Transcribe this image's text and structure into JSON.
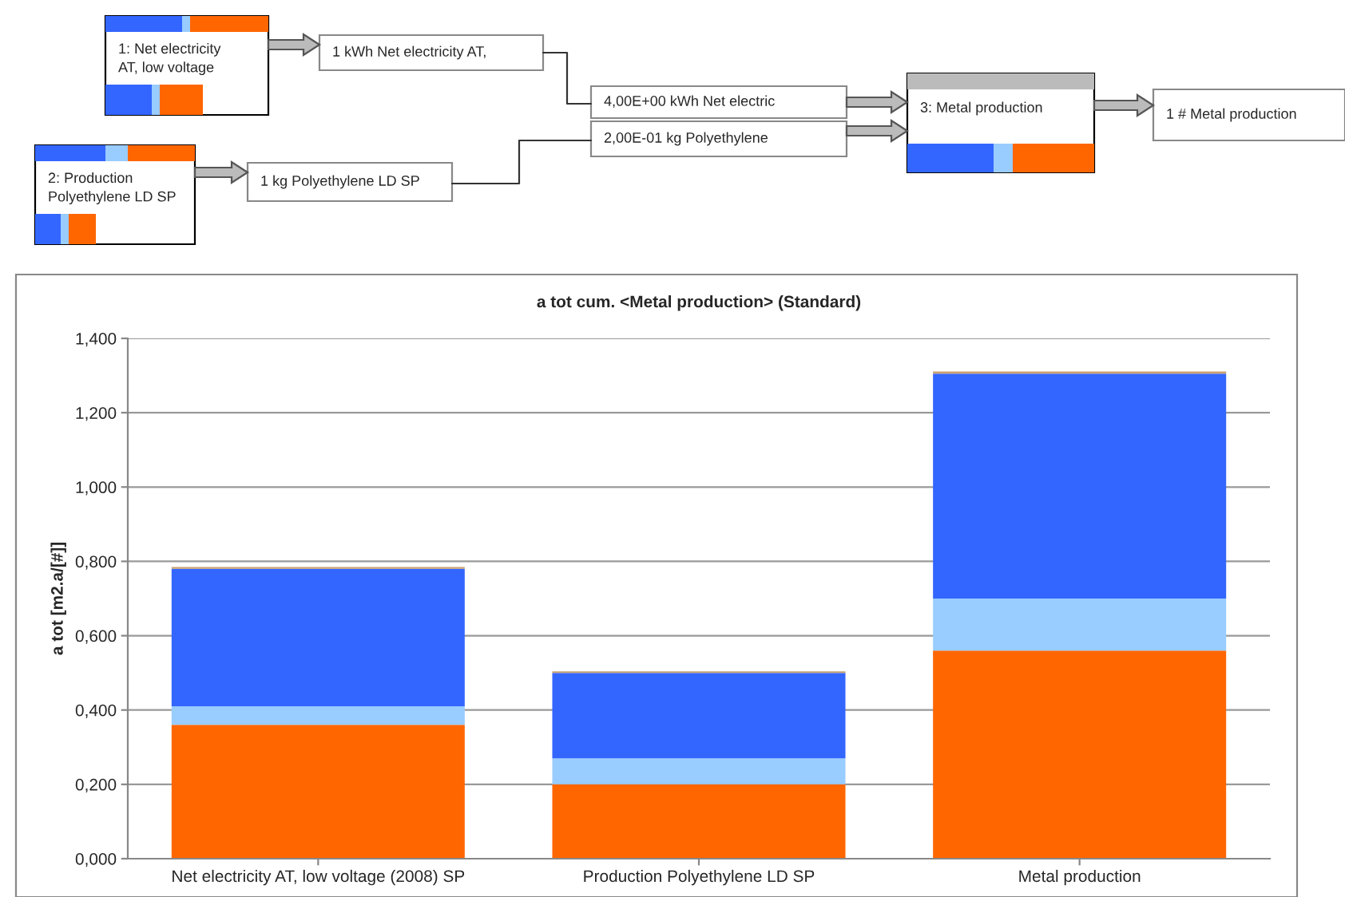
{
  "chart_data": {
    "type": "bar",
    "title": "a tot cum. <Metal production> (Standard)",
    "ylabel": "a tot [m2.a/[#]]",
    "categories": [
      "Net electricity AT, low voltage (2008) SP",
      "Production Polyethylene LD SP",
      "Metal production"
    ],
    "stacked": true,
    "series": [
      {
        "color": "#ff6600",
        "values": [
          0.36,
          0.2,
          0.56
        ]
      },
      {
        "color": "#99ccff",
        "values": [
          0.05,
          0.07,
          0.14
        ]
      },
      {
        "color": "#3366ff",
        "values": [
          0.37,
          0.23,
          0.605
        ]
      },
      {
        "color": "#c8a070",
        "values": [
          0.005,
          0.004,
          0.006
        ]
      }
    ],
    "ylim": [
      0,
      1.4
    ],
    "yticks": [
      {
        "value": 0,
        "label": "0,000"
      },
      {
        "value": 0.2,
        "label": "0,200"
      },
      {
        "value": 0.4,
        "label": "0,400"
      },
      {
        "value": 0.6,
        "label": "0,600"
      },
      {
        "value": 0.8,
        "label": "0,800"
      },
      {
        "value": 1.0,
        "label": "1,000"
      },
      {
        "value": 1.2,
        "label": "1,200"
      },
      {
        "value": 1.4,
        "label": "1,400"
      }
    ],
    "grid": "y",
    "legend": false,
    "annotations": [
      "1: Net electricity\nAT, low voltage",
      "1 kWh Net electricity AT,",
      "4,00E+00 kWh Net electric",
      "2,00E-01 kg Polyethylene",
      "3: Metal production",
      "1 # Metal production",
      "2: Production\nPolyethylene LD SP",
      "1 kg Polyethylene LD SP"
    ]
  }
}
